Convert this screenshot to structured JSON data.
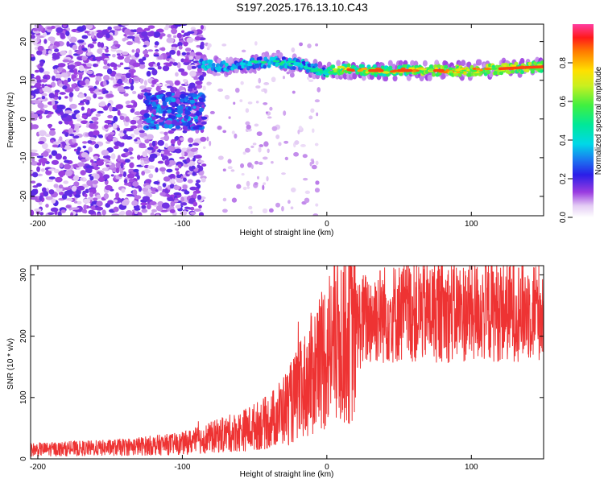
{
  "title": "S197.2025.176.13.10.C43",
  "chart_data": [
    {
      "type": "heatmap",
      "xlabel": "Height of straight line (km)",
      "ylabel": "Frequency (Hz)",
      "xlim": [
        -205,
        150
      ],
      "ylim": [
        -25,
        24.5
      ],
      "xticks": [
        -200,
        -100,
        0,
        100
      ],
      "yticks": [
        -20,
        -10,
        0,
        10,
        20
      ],
      "colorbar": {
        "label": "Normalized spectral amplitude",
        "range": [
          0,
          1
        ],
        "ticks": [
          0.0,
          0.2,
          0.4,
          0.6,
          0.8
        ]
      },
      "ridge": {
        "description_points_x": [
          -88,
          -80,
          -70,
          -60,
          -50,
          -40,
          -30,
          -20,
          -10,
          0,
          10,
          20,
          40,
          60,
          80,
          100,
          120,
          150
        ],
        "description_points_y": [
          14.5,
          13.8,
          13.5,
          14.0,
          14.3,
          14.8,
          14.5,
          14.2,
          13.0,
          12.0,
          13.0,
          12.5,
          12.5,
          12.5,
          12.5,
          12.5,
          13.0,
          13.5
        ]
      },
      "lowband": {
        "x": [
          -125,
          -85
        ],
        "y_center": 2
      }
    },
    {
      "type": "line",
      "xlabel": "Height of straight line (km)",
      "ylabel": "SNR (10 * v/v)",
      "xlim": [
        -205,
        150
      ],
      "ylim": [
        0,
        315
      ],
      "xticks": [
        -200,
        -100,
        0,
        100
      ],
      "yticks": [
        0,
        100,
        200,
        300
      ],
      "series": [
        {
          "color": "#ee3333",
          "trend_x": [
            -205,
            -150,
            -120,
            -100,
            -80,
            -60,
            -40,
            -25,
            -15,
            -5,
            0,
            5,
            15,
            25,
            35,
            60,
            100,
            150
          ],
          "trend_y": [
            15,
            18,
            22,
            25,
            35,
            45,
            60,
            90,
            120,
            160,
            175,
            190,
            210,
            225,
            235,
            240,
            240,
            245
          ],
          "noise_amp": 0.35
        }
      ]
    }
  ]
}
